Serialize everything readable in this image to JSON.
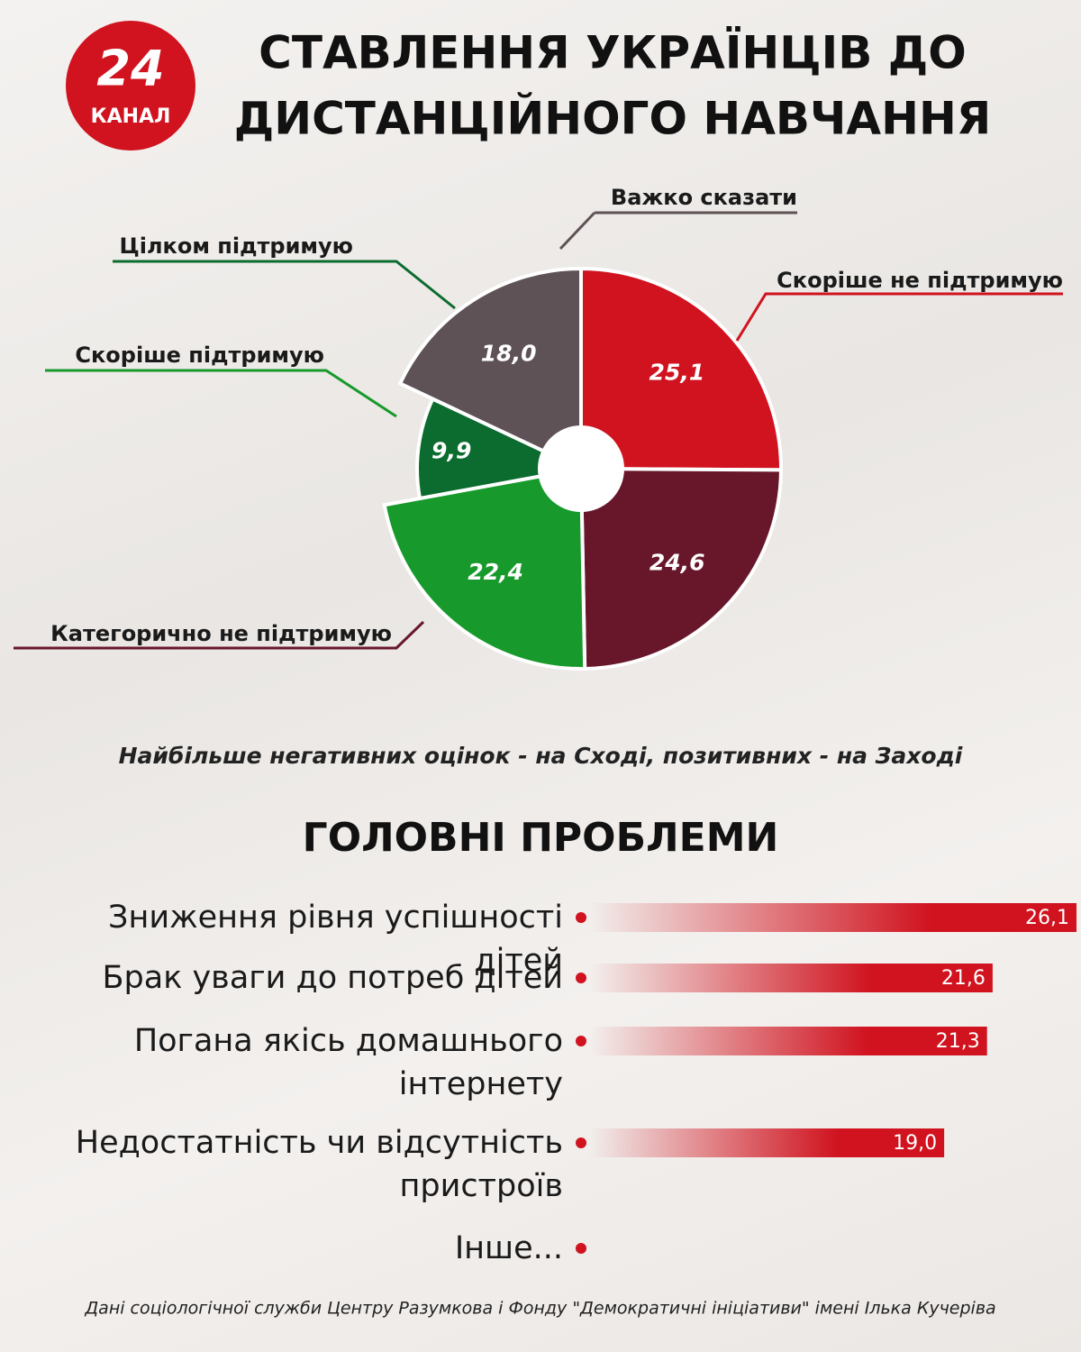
{
  "logo": {
    "number": "24",
    "text": "КАНАЛ"
  },
  "header": {
    "title_line1": "СТАВЛЕННЯ УКРАЇНЦІВ ДО",
    "title_line2": "ДИСТАНЦІЙНОГО НАВЧАННЯ"
  },
  "chart_data": [
    {
      "type": "pie",
      "categories": [
        "Скоріше не підтримую",
        "Категорично не підтримую",
        "Скоріше підтримую",
        "Цілком підтримую",
        "Важко сказати"
      ],
      "values": [
        25.1,
        24.6,
        22.4,
        9.9,
        18.0
      ],
      "value_labels": [
        "25,1",
        "24,6",
        "22,4",
        "9,9",
        "18,0"
      ],
      "colors": [
        "#d0131f",
        "#68172b",
        "#179a2b",
        "#0c6b2e",
        "#5e5256"
      ]
    },
    {
      "type": "bar",
      "title": "ГОЛОВНІ ПРОБЛЕМИ",
      "categories": [
        "Зниження рівня успішності дітей",
        "Брак уваги до потреб дітей",
        "Погана якісь домашнього інтернету",
        "Недостатність чи відсутність пристроїв",
        "Інше..."
      ],
      "values": [
        26.1,
        21.6,
        21.3,
        19.0,
        null
      ],
      "value_labels": [
        "26,1",
        "21,6",
        "21,3",
        "19,0",
        null
      ],
      "color": "#d0131f"
    }
  ],
  "note": "Найбільше негативних оцінок - на Сході, позитивних - на Заході",
  "source": "Дані соціологічної служби Центру Разумкова і Фонду \"Демократичні ініціативи\" імені Ілька Кучеріва"
}
